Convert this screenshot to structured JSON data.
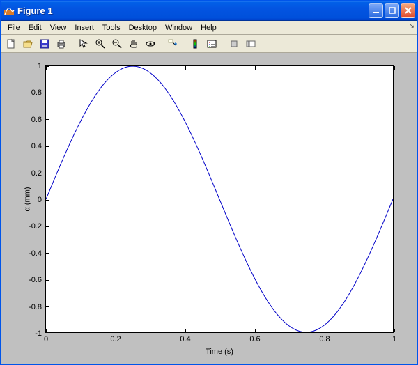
{
  "window": {
    "title": "Figure 1",
    "titlebar_gradient": [
      "#3f90f9",
      "#0050db"
    ],
    "background": "#ece9d8",
    "figure_bg": "#c0c0c0"
  },
  "menus": {
    "file": {
      "label": "File",
      "underline": 0
    },
    "edit": {
      "label": "Edit",
      "underline": 0
    },
    "view": {
      "label": "View",
      "underline": 0
    },
    "insert": {
      "label": "Insert",
      "underline": 0
    },
    "tools": {
      "label": "Tools",
      "underline": 0
    },
    "desktop": {
      "label": "Desktop",
      "underline": 0
    },
    "window": {
      "label": "Window",
      "underline": 0
    },
    "help": {
      "label": "Help",
      "underline": 0
    }
  },
  "toolbar_icons": [
    "new",
    "open",
    "save",
    "print",
    "sep",
    "pointer",
    "zoom-in",
    "zoom-out",
    "pan",
    "rotate3d",
    "sep",
    "data-cursor",
    "sep",
    "insert-colorbar",
    "insert-legend",
    "sep",
    "hide-tools",
    "show-tools"
  ],
  "chart": {
    "type": "line",
    "xlabel": "Time (s)",
    "ylabel": "α (mm)",
    "xlim": [
      0,
      1
    ],
    "ylim": [
      -1,
      1
    ],
    "xtick_step": 0.2,
    "ytick_step": 0.2,
    "xticks": [
      0,
      0.2,
      0.4,
      0.6,
      0.8,
      1
    ],
    "yticks": [
      -1,
      -0.8,
      -0.6,
      -0.4,
      -0.2,
      0,
      0.2,
      0.4,
      0.6,
      0.8,
      1
    ],
    "line_color": "#0000c8",
    "line_width": 1,
    "background_color": "#ffffff",
    "axes_color": "#000000",
    "label_fontsize": 11,
    "tick_fontsize": 11,
    "series": {
      "function": "sin(2*pi*x)",
      "n_points": 101,
      "x": [
        0,
        0.01,
        0.02,
        0.03,
        0.04,
        0.05,
        0.06,
        0.07,
        0.08,
        0.09,
        0.1,
        0.11,
        0.12,
        0.13,
        0.14,
        0.15,
        0.16,
        0.17,
        0.18,
        0.19,
        0.2,
        0.21,
        0.22,
        0.23,
        0.24,
        0.25,
        0.26,
        0.27,
        0.28,
        0.29,
        0.3,
        0.31,
        0.32,
        0.33,
        0.34,
        0.35,
        0.36,
        0.37,
        0.38,
        0.39,
        0.4,
        0.41,
        0.42,
        0.43,
        0.44,
        0.45,
        0.46,
        0.47,
        0.48,
        0.49,
        0.5,
        0.51,
        0.52,
        0.53,
        0.54,
        0.55,
        0.56,
        0.57,
        0.58,
        0.59,
        0.6,
        0.61,
        0.62,
        0.63,
        0.64,
        0.65,
        0.66,
        0.67,
        0.68,
        0.69,
        0.7,
        0.71,
        0.72,
        0.73,
        0.74,
        0.75,
        0.76,
        0.77,
        0.78,
        0.79,
        0.8,
        0.81,
        0.82,
        0.83,
        0.84,
        0.85,
        0.86,
        0.87,
        0.88,
        0.89,
        0.9,
        0.91,
        0.92,
        0.93,
        0.94,
        0.95,
        0.96,
        0.97,
        0.98,
        0.99,
        1
      ],
      "y": [
        0,
        0.0628,
        0.1253,
        0.1874,
        0.2487,
        0.309,
        0.3681,
        0.4258,
        0.4818,
        0.5358,
        0.5878,
        0.6374,
        0.6845,
        0.729,
        0.7705,
        0.809,
        0.8443,
        0.8763,
        0.9048,
        0.9298,
        0.9511,
        0.9686,
        0.9823,
        0.9921,
        0.998,
        1,
        0.998,
        0.9921,
        0.9823,
        0.9686,
        0.9511,
        0.9298,
        0.9048,
        0.8763,
        0.8443,
        0.809,
        0.7705,
        0.729,
        0.6845,
        0.6374,
        0.5878,
        0.5358,
        0.4818,
        0.4258,
        0.3681,
        0.309,
        0.2487,
        0.1874,
        0.1253,
        0.0628,
        0,
        -0.0628,
        -0.1253,
        -0.1874,
        -0.2487,
        -0.309,
        -0.3681,
        -0.4258,
        -0.4818,
        -0.5358,
        -0.5878,
        -0.6374,
        -0.6845,
        -0.729,
        -0.7705,
        -0.809,
        -0.8443,
        -0.8763,
        -0.9048,
        -0.9298,
        -0.9511,
        -0.9686,
        -0.9823,
        -0.9921,
        -0.998,
        -1,
        -0.998,
        -0.9921,
        -0.9823,
        -0.9686,
        -0.9511,
        -0.9298,
        -0.9048,
        -0.8763,
        -0.8443,
        -0.809,
        -0.7705,
        -0.729,
        -0.6845,
        -0.6374,
        -0.5878,
        -0.5358,
        -0.4818,
        -0.4258,
        -0.3681,
        -0.309,
        -0.2487,
        -0.1874,
        -0.1253,
        -0.0628,
        0
      ]
    }
  }
}
